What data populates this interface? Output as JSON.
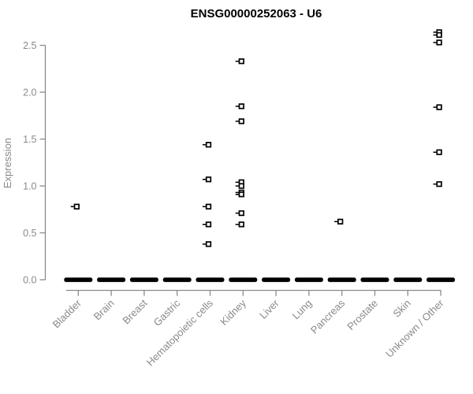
{
  "chart_data": {
    "type": "scatter",
    "title": "ENSG00000252063 - U6",
    "xlabel": "",
    "ylabel": "Expression",
    "ylim": [
      0,
      2.65
    ],
    "yticks": [
      "0.0",
      "0.5",
      "1.0",
      "1.5",
      "2.0",
      "2.5"
    ],
    "grid": false,
    "legend": false,
    "marker": "open-square",
    "colors": {
      "points": "#000000",
      "axis": "#8a8a8a",
      "title": "#000000",
      "background": "#ffffff"
    },
    "categories": [
      "Bladder",
      "Brain",
      "Breast",
      "Gastric",
      "Hematopoietic cells",
      "Kidney",
      "Liver",
      "Lung",
      "Pancreas",
      "Prostate",
      "Skin",
      "Unknown / Other"
    ],
    "series": [
      {
        "category": "Bladder",
        "zero_cluster": true,
        "values": [
          0.78
        ]
      },
      {
        "category": "Brain",
        "zero_cluster": true,
        "values": []
      },
      {
        "category": "Breast",
        "zero_cluster": true,
        "values": []
      },
      {
        "category": "Gastric",
        "zero_cluster": true,
        "values": []
      },
      {
        "category": "Hematopoietic cells",
        "zero_cluster": true,
        "values": [
          1.44,
          1.07,
          0.78,
          0.59,
          0.38
        ]
      },
      {
        "category": "Kidney",
        "zero_cluster": true,
        "values": [
          2.33,
          1.85,
          1.69,
          1.04,
          1.0,
          0.93,
          0.91,
          0.71,
          0.59
        ]
      },
      {
        "category": "Liver",
        "zero_cluster": true,
        "values": []
      },
      {
        "category": "Lung",
        "zero_cluster": true,
        "values": []
      },
      {
        "category": "Pancreas",
        "zero_cluster": true,
        "values": [
          0.62
        ]
      },
      {
        "category": "Prostate",
        "zero_cluster": true,
        "values": []
      },
      {
        "category": "Skin",
        "zero_cluster": true,
        "values": []
      },
      {
        "category": "Unknown / Other",
        "zero_cluster": true,
        "values": [
          2.64,
          2.61,
          2.53,
          1.84,
          1.36,
          1.02
        ]
      }
    ]
  }
}
